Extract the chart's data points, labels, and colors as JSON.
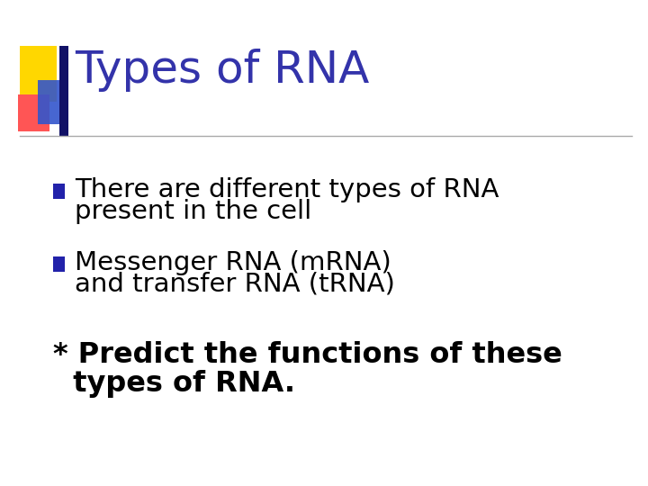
{
  "title": "Types of RNA",
  "title_color": "#3333AA",
  "title_fontsize": 36,
  "background_color": "#FFFFFF",
  "bullet1_line1": "There are different types of RNA",
  "bullet1_line2": "present in the cell",
  "bullet2_line1": "Messenger RNA (mRNA)",
  "bullet2_line2": "and transfer RNA (tRNA)",
  "footer_line1": "* Predict the functions of these",
  "footer_line2": "  types of RNA.",
  "bullet_color": "#2222AA",
  "body_color": "#000000",
  "body_fontsize": 21,
  "footer_fontsize": 23,
  "separator_color": "#AAAAAA",
  "logo_yellow": "#FFD700",
  "logo_red": "#FF5555",
  "logo_blue": "#3355CC",
  "logo_darkblue": "#111166"
}
